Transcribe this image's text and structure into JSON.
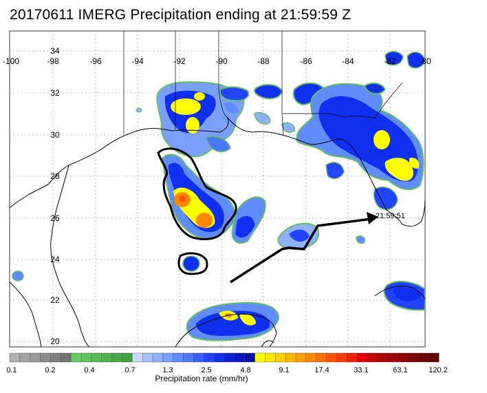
{
  "title": "20170611 IMERG Precipitation ending at 21:59:59 Z",
  "map": {
    "longitude_labels": [
      "-100",
      "-98",
      "-96",
      "-94",
      "-92",
      "-90",
      "-88",
      "-86",
      "-84",
      "-82",
      "-80"
    ],
    "latitude_labels": [
      "34",
      "32",
      "30",
      "28",
      "26",
      "24",
      "22",
      "20"
    ],
    "track_label": "21:59:51"
  },
  "colorbar": {
    "title": "Precipitation rate (mm/hr)",
    "tick_labels": [
      "0.1",
      "0.2",
      "0.4",
      "0.7",
      "1.3",
      "2.5",
      "4.8",
      "9.1",
      "17.4",
      "33.1",
      "63.1",
      "120.2"
    ],
    "colors": [
      "#b0b0b0",
      "#a3a3a3",
      "#999999",
      "#8c8c8c",
      "#7f7f7f",
      "#737373",
      "#66cc66",
      "#5fc35f",
      "#58ba58",
      "#51b151",
      "#4aa84a",
      "#43a043",
      "#c8d8ff",
      "#a8c4ff",
      "#8fb2ff",
      "#7aa0ff",
      "#5f8cff",
      "#4a78ff",
      "#3a5cff",
      "#2244ff",
      "#1030f0",
      "#0820d8",
      "#0618c0",
      "#0510a8",
      "#ffff00",
      "#ffe800",
      "#ffd000",
      "#ffb800",
      "#ffa000",
      "#ff8800",
      "#ff6e00",
      "#ff5400",
      "#ff3a00",
      "#f02000",
      "#e00000",
      "#c80000",
      "#b00000",
      "#a00000",
      "#900000",
      "#800000",
      "#700000",
      "#600000"
    ]
  },
  "colors": {
    "rain_light": "#8fb2ff",
    "rain_moderate": "#1030f0",
    "rain_heavy": "#ffff00",
    "rain_intense": "#ff6e00",
    "coast": "#000000",
    "grid": "#888888",
    "rain_edge": "#66bb66"
  }
}
